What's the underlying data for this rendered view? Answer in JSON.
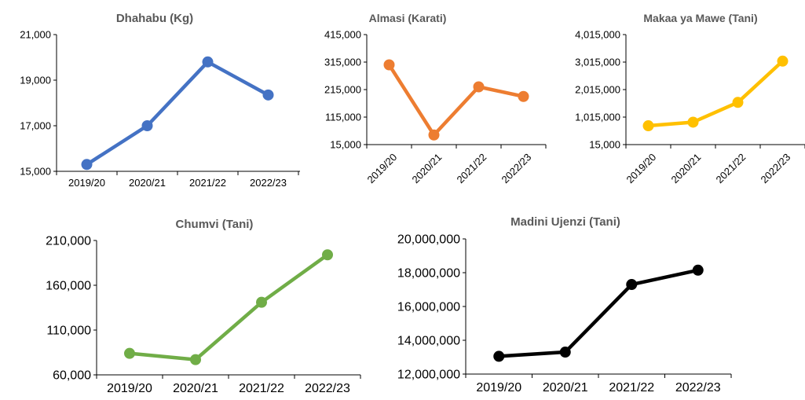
{
  "chart_data": [
    {
      "type": "line",
      "title": "Dhahabu (Kg)",
      "categories": [
        "2019/20",
        "2020/21",
        "2021/22",
        "2022/23"
      ],
      "values": [
        15300,
        17000,
        19800,
        18350
      ],
      "ylim": [
        15000,
        21000
      ],
      "yticks": [
        "15,000",
        "17,000",
        "19,000",
        "21,000"
      ],
      "color": "#4472C4",
      "grid": false
    },
    {
      "type": "line",
      "title": "Almasi (Karati)",
      "categories": [
        "2019/20",
        "2020/21",
        "2021/22",
        "2022/23"
      ],
      "values": [
        305000,
        50000,
        225000,
        190000
      ],
      "ylim": [
        15000,
        415000
      ],
      "yticks": [
        "15,000",
        "115,000",
        "215,000",
        "315,000",
        "415,000"
      ],
      "color": "#ED7D31",
      "grid": false
    },
    {
      "type": "line",
      "title": "Makaa ya Mawe (Tani)",
      "categories": [
        "2019/20",
        "2020/21",
        "2021/22",
        "2022/23"
      ],
      "values": [
        700000,
        830000,
        1550000,
        3050000
      ],
      "ylim": [
        15000,
        4015000
      ],
      "yticks": [
        "15,000",
        "1,015,000",
        "2,015,000",
        "3,015,000",
        "4,015,000"
      ],
      "color": "#FFC000",
      "grid": false
    },
    {
      "type": "line",
      "title": "Chumvi (Tani)",
      "categories": [
        "2019/20",
        "2020/21",
        "2021/22",
        "2022/23"
      ],
      "values": [
        84000,
        77000,
        141000,
        194000
      ],
      "ylim": [
        60000,
        210000
      ],
      "yticks": [
        "60,000",
        "110,000",
        "160,000",
        "210,000"
      ],
      "color": "#70AD47",
      "grid": false
    },
    {
      "type": "line",
      "title": "Madini Ujenzi (Tani)",
      "categories": [
        "2019/20",
        "2020/21",
        "2021/22",
        "2022/23"
      ],
      "values": [
        13050000,
        13300000,
        17300000,
        18150000
      ],
      "ylim": [
        12000000,
        20000000
      ],
      "yticks": [
        "12,000,000",
        "14,000,000",
        "16,000,000",
        "18,000,000",
        "20,000,000"
      ],
      "color": "#000000",
      "grid": false
    }
  ]
}
